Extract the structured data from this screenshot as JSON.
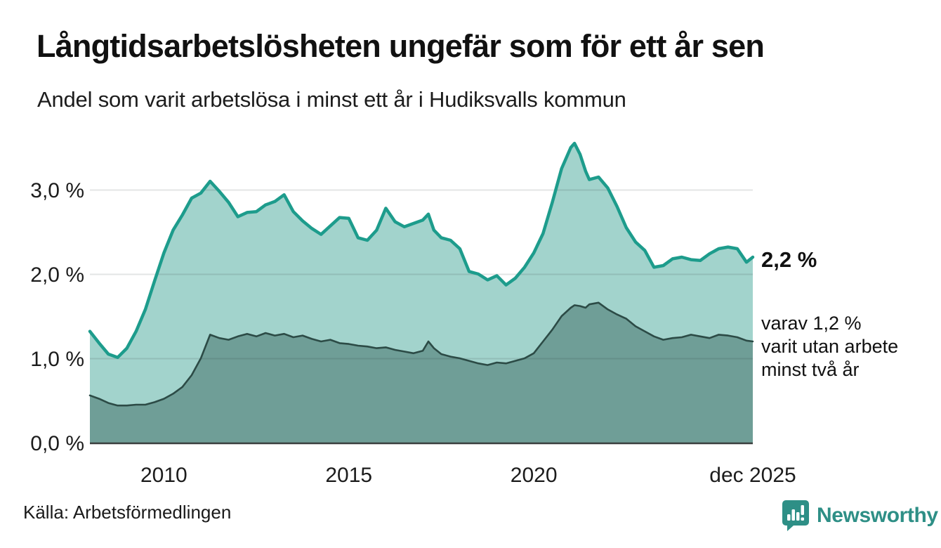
{
  "header": {
    "title": "Långtidsarbetslösheten ungefär som för ett år sen",
    "subtitle": "Andel som varit arbetslösa i minst ett år i Hudiksvalls kommun"
  },
  "annotations": {
    "end_value_label": "2,2 %",
    "end_note": "varav 1,2 %\nvarit utan arbete\nminst två år"
  },
  "source": "Källa: Arbetsförmedlingen",
  "brand": {
    "name": "Newsworthy",
    "color": "#2e8f86",
    "icon": "bar-chart-speech-bubble-icon"
  },
  "colors": {
    "line_total": "#1d9c8c",
    "area_total": "#a2d3cc",
    "area_two_years": "#6f9e97",
    "line_two_years": "#2c4b46",
    "gridline": "rgba(40,45,45,0.13)",
    "axis": "#3a3f3f",
    "text": "#111111"
  },
  "chart_data": {
    "type": "area",
    "title": "Långtidsarbetslösheten ungefär som för ett år sen",
    "subtitle": "Andel som varit arbetslösa i minst ett år i Hudiksvalls kommun",
    "unit": "%",
    "grid": "horizontal",
    "legend_position": "none",
    "xlim": [
      2008.0,
      2025.92
    ],
    "ylim": [
      0,
      3.75
    ],
    "yticks": [
      {
        "v": 0,
        "label": "0,0 %"
      },
      {
        "v": 1,
        "label": "1,0 %"
      },
      {
        "v": 2,
        "label": "2,0 %"
      },
      {
        "v": 3,
        "label": "3,0 %"
      }
    ],
    "xticks": [
      {
        "t": 2010,
        "label": "2010"
      },
      {
        "t": 2015,
        "label": "2015"
      },
      {
        "t": 2020,
        "label": "2020"
      },
      {
        "t": 2025.92,
        "label": "dec 2025"
      }
    ],
    "x": [
      2008.0,
      2008.25,
      2008.5,
      2008.75,
      2009.0,
      2009.25,
      2009.5,
      2009.75,
      2010.0,
      2010.25,
      2010.5,
      2010.75,
      2011.0,
      2011.25,
      2011.5,
      2011.75,
      2012.0,
      2012.25,
      2012.5,
      2012.75,
      2013.0,
      2013.25,
      2013.5,
      2013.75,
      2014.0,
      2014.25,
      2014.5,
      2014.75,
      2015.0,
      2015.25,
      2015.5,
      2015.75,
      2016.0,
      2016.25,
      2016.5,
      2016.75,
      2017.0,
      2017.15,
      2017.3,
      2017.5,
      2017.75,
      2018.0,
      2018.25,
      2018.5,
      2018.75,
      2019.0,
      2019.25,
      2019.5,
      2019.75,
      2020.0,
      2020.25,
      2020.5,
      2020.75,
      2021.0,
      2021.1,
      2021.25,
      2021.4,
      2021.5,
      2021.75,
      2022.0,
      2022.25,
      2022.5,
      2022.75,
      2023.0,
      2023.25,
      2023.5,
      2023.75,
      2024.0,
      2024.25,
      2024.5,
      2024.75,
      2025.0,
      2025.25,
      2025.5,
      2025.75,
      2025.92
    ],
    "series": [
      {
        "name": "Andel arbetslösa minst ett år",
        "last_value": 2.2,
        "values": [
          1.32,
          1.18,
          1.05,
          1.01,
          1.12,
          1.32,
          1.58,
          1.92,
          2.25,
          2.52,
          2.7,
          2.9,
          2.96,
          3.1,
          2.98,
          2.85,
          2.68,
          2.73,
          2.74,
          2.82,
          2.86,
          2.94,
          2.74,
          2.63,
          2.54,
          2.47,
          2.57,
          2.67,
          2.66,
          2.43,
          2.4,
          2.52,
          2.78,
          2.62,
          2.56,
          2.6,
          2.64,
          2.71,
          2.52,
          2.43,
          2.4,
          2.3,
          2.03,
          2.0,
          1.93,
          1.98,
          1.87,
          1.95,
          2.08,
          2.25,
          2.48,
          2.85,
          3.25,
          3.5,
          3.55,
          3.42,
          3.22,
          3.12,
          3.15,
          3.02,
          2.8,
          2.55,
          2.38,
          2.28,
          2.08,
          2.1,
          2.18,
          2.2,
          2.17,
          2.16,
          2.24,
          2.3,
          2.32,
          2.3,
          2.14,
          2.2
        ]
      },
      {
        "name": "Varav utan arbete minst två år",
        "last_value": 1.2,
        "values": [
          0.56,
          0.52,
          0.47,
          0.44,
          0.44,
          0.45,
          0.45,
          0.48,
          0.52,
          0.58,
          0.66,
          0.8,
          1.0,
          1.28,
          1.24,
          1.22,
          1.26,
          1.29,
          1.26,
          1.3,
          1.27,
          1.29,
          1.25,
          1.27,
          1.23,
          1.2,
          1.22,
          1.18,
          1.17,
          1.15,
          1.14,
          1.12,
          1.13,
          1.1,
          1.08,
          1.06,
          1.09,
          1.2,
          1.12,
          1.05,
          1.02,
          1.0,
          0.97,
          0.94,
          0.92,
          0.95,
          0.94,
          0.97,
          1.0,
          1.06,
          1.2,
          1.34,
          1.5,
          1.6,
          1.63,
          1.62,
          1.6,
          1.64,
          1.66,
          1.58,
          1.52,
          1.47,
          1.38,
          1.32,
          1.26,
          1.22,
          1.24,
          1.25,
          1.28,
          1.26,
          1.24,
          1.28,
          1.27,
          1.25,
          1.21,
          1.2
        ]
      }
    ]
  }
}
